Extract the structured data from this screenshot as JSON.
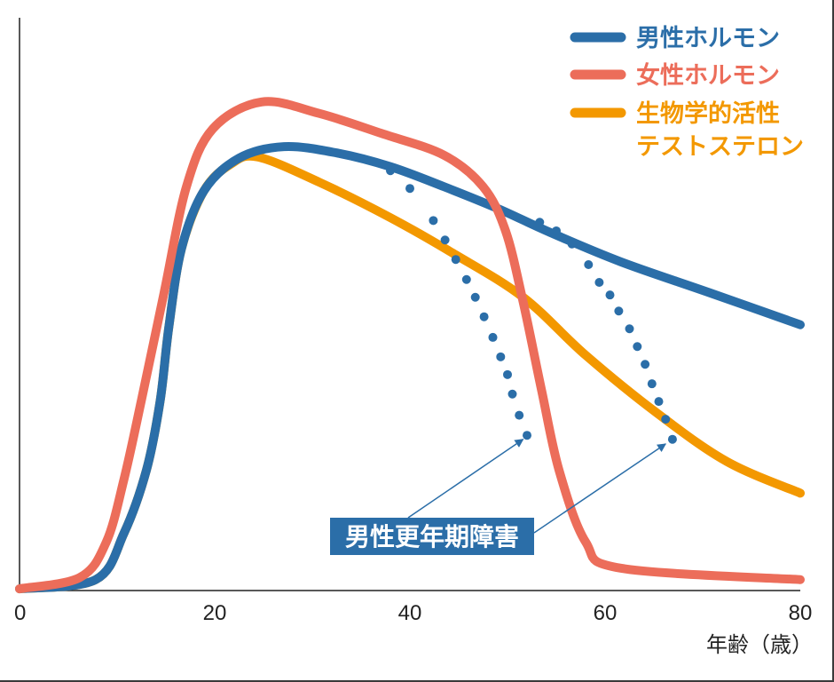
{
  "chart_data": {
    "type": "line",
    "title": "",
    "xlabel": "年齢（歳）",
    "ylabel": "",
    "xlim": [
      0,
      80
    ],
    "ylim": [
      0,
      100
    ],
    "xticks": [
      0,
      20,
      40,
      60,
      80
    ],
    "grid": false,
    "legend_placement": "top-right",
    "series": [
      {
        "name": "男性ホルモン",
        "color": "#2b6ea8",
        "style": "solid",
        "x": [
          0,
          7.8,
          10.7,
          13,
          14.4,
          15.3,
          16.6,
          18.9,
          22.5,
          27.1,
          32.5,
          38,
          43.5,
          49,
          54.4,
          61.6,
          70.7,
          80
        ],
        "y": [
          0.3,
          1.9,
          10,
          21,
          33,
          46,
          59.7,
          69.8,
          75.5,
          77.5,
          76.4,
          74,
          70.5,
          66.7,
          62.5,
          57.4,
          52,
          46.4
        ]
      },
      {
        "name": "女性ホルモン",
        "color": "#ec6d5a",
        "style": "solid",
        "x": [
          0,
          6.2,
          8.9,
          10.7,
          12.5,
          14.8,
          17.1,
          19.8,
          24.8,
          30.7,
          37.1,
          43.5,
          47.5,
          49.8,
          51.6,
          53.5,
          55.3,
          58,
          61.6,
          80
        ],
        "y": [
          0.3,
          2.3,
          8.5,
          19.4,
          33.3,
          51.9,
          70.5,
          80.6,
          85.3,
          83.3,
          79.8,
          76,
          70.5,
          62.8,
          50.4,
          34.9,
          20.9,
          8.5,
          3.9,
          1.9
        ]
      },
      {
        "name": "生物学的活性テストステロン",
        "name_lines": [
          "生物学的活性",
          "テストステロン"
        ],
        "color": "#f39800",
        "style": "solid",
        "x": [
          0,
          7.8,
          10.7,
          13,
          14.4,
          15.3,
          16.6,
          18.9,
          21.6,
          24.4,
          30.7,
          38,
          44.4,
          51.6,
          58,
          65.3,
          72.5,
          80
        ],
        "y": [
          0.3,
          1.9,
          10,
          21,
          33,
          46,
          59.7,
          69.8,
          74.4,
          75.7,
          71.3,
          65.1,
          58.9,
          51.2,
          41.1,
          31,
          22.5,
          17
        ]
      },
      {
        "color": "#2b6ea8",
        "style": "dotted",
        "x": [
          38,
          40,
          42.4,
          43.6,
          44.7,
          45.8,
          46.7,
          47.6,
          48.5,
          49.3,
          50,
          50.5,
          51.2,
          52
        ],
        "y": [
          73.3,
          70.2,
          64.6,
          61.2,
          57.8,
          54.3,
          51.2,
          47.8,
          44.2,
          40.8,
          37.7,
          34.3,
          30.6,
          27.1
        ]
      },
      {
        "color": "#2b6ea8",
        "style": "dotted",
        "x": [
          53.3,
          55,
          56.6,
          58.3,
          59.4,
          60.5,
          61.4,
          62.5,
          63.3,
          64.1,
          64.8,
          65.5,
          66.2,
          66.9
        ],
        "y": [
          64.3,
          62.8,
          60.5,
          56.9,
          53.8,
          51.6,
          48.8,
          45.7,
          42.6,
          39.5,
          36.1,
          33,
          29.9,
          26.4
        ]
      }
    ],
    "annotation": {
      "text": "男性更年期障害",
      "color": "#2b6ea8",
      "arrows_to": [
        [
          51.6,
          26.4
        ],
        [
          66.2,
          25.6
        ]
      ]
    }
  }
}
